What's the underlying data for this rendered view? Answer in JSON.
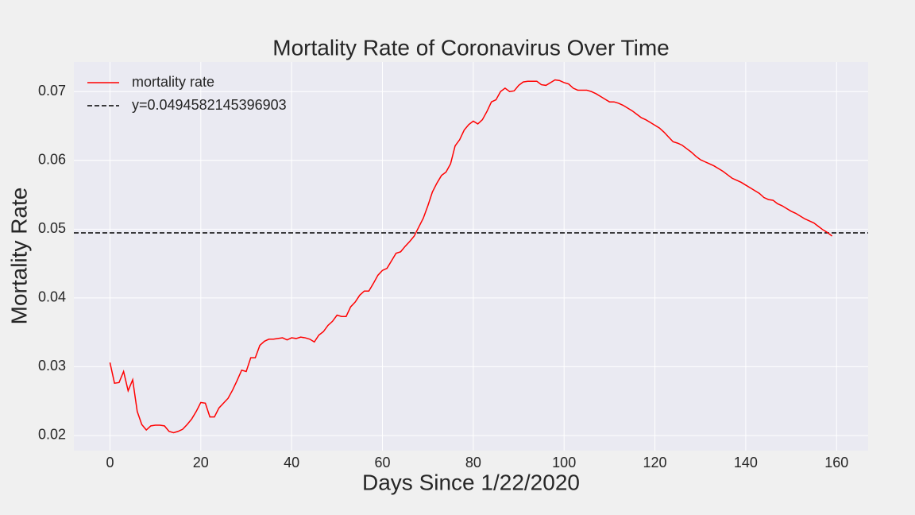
{
  "chart_data": {
    "type": "line",
    "title": "Mortality Rate of Coronavirus Over Time",
    "xlabel": "Days Since 1/22/2020",
    "ylabel": "Mortality Rate",
    "x": [
      0,
      1,
      2,
      3,
      4,
      5,
      6,
      7,
      8,
      9,
      10,
      11,
      12,
      13,
      14,
      15,
      16,
      17,
      18,
      19,
      20,
      21,
      22,
      23,
      24,
      25,
      26,
      27,
      28,
      29,
      30,
      31,
      32,
      33,
      34,
      35,
      36,
      37,
      38,
      39,
      40,
      41,
      42,
      43,
      44,
      45,
      46,
      47,
      48,
      49,
      50,
      51,
      52,
      53,
      54,
      55,
      56,
      57,
      58,
      59,
      60,
      61,
      62,
      63,
      64,
      65,
      66,
      67,
      68,
      69,
      70,
      71,
      72,
      73,
      74,
      75,
      76,
      77,
      78,
      79,
      80,
      81,
      82,
      83,
      84,
      85,
      86,
      87,
      88,
      89,
      90,
      91,
      92,
      93,
      94,
      95,
      96,
      97,
      98,
      99,
      100,
      101,
      102,
      103,
      104,
      105,
      106,
      107,
      108,
      109,
      110,
      111,
      112,
      113,
      114,
      115,
      116,
      117,
      118,
      119,
      120,
      121,
      122,
      123,
      124,
      125,
      126,
      127,
      128,
      129,
      130,
      131,
      132,
      133,
      134,
      135,
      136,
      137,
      138,
      139,
      140,
      141,
      142,
      143,
      144,
      145,
      146,
      147,
      148,
      149,
      150,
      151,
      152,
      153,
      154,
      155,
      156,
      157,
      158,
      159
    ],
    "series": [
      {
        "name": "mortality rate",
        "color": "#ff0000",
        "values": [
          0.0306,
          0.0276,
          0.0277,
          0.0293,
          0.0265,
          0.0281,
          0.0235,
          0.0216,
          0.0208,
          0.0214,
          0.0215,
          0.0215,
          0.0214,
          0.0206,
          0.0204,
          0.0206,
          0.0209,
          0.0216,
          0.0224,
          0.0235,
          0.0248,
          0.0247,
          0.0227,
          0.0227,
          0.024,
          0.0247,
          0.0254,
          0.0266,
          0.028,
          0.0295,
          0.0293,
          0.0313,
          0.0313,
          0.0331,
          0.0337,
          0.034,
          0.034,
          0.0341,
          0.0342,
          0.0339,
          0.0342,
          0.0341,
          0.0343,
          0.0342,
          0.034,
          0.0336,
          0.0346,
          0.0351,
          0.036,
          0.0366,
          0.0375,
          0.0373,
          0.0373,
          0.0387,
          0.0394,
          0.0404,
          0.041,
          0.041,
          0.0421,
          0.0433,
          0.044,
          0.0443,
          0.0454,
          0.0465,
          0.0467,
          0.0475,
          0.0482,
          0.049,
          0.0503,
          0.0516,
          0.0534,
          0.0554,
          0.0567,
          0.0578,
          0.0583,
          0.0595,
          0.0621,
          0.063,
          0.0644,
          0.0652,
          0.0657,
          0.0653,
          0.0659,
          0.0671,
          0.0685,
          0.0688,
          0.07,
          0.0705,
          0.07,
          0.0701,
          0.0709,
          0.0714,
          0.0715,
          0.0715,
          0.0715,
          0.071,
          0.0709,
          0.0713,
          0.0717,
          0.0716,
          0.0713,
          0.0711,
          0.0705,
          0.0702,
          0.0702,
          0.0702,
          0.07,
          0.0697,
          0.0693,
          0.0689,
          0.0685,
          0.0685,
          0.0683,
          0.068,
          0.0676,
          0.0672,
          0.0667,
          0.0662,
          0.0659,
          0.0655,
          0.0651,
          0.0647,
          0.0641,
          0.0634,
          0.0627,
          0.0625,
          0.0622,
          0.0617,
          0.0612,
          0.0606,
          0.0601,
          0.0598,
          0.0595,
          0.0592,
          0.0588,
          0.0584,
          0.0579,
          0.0574,
          0.0571,
          0.0568,
          0.0564,
          0.056,
          0.0556,
          0.0552,
          0.0546,
          0.0543,
          0.0542,
          0.0537,
          0.0534,
          0.053,
          0.0526,
          0.0523,
          0.0519,
          0.0515,
          0.0512,
          0.0509,
          0.0504,
          0.0499,
          0.0495,
          0.049
        ]
      }
    ],
    "hline": {
      "name": "y=0.0494582145396903",
      "value": 0.0494582145396903,
      "color": "#000000",
      "style": "dashed"
    },
    "xlim": [
      -7.95,
      166.95
    ],
    "xticks": [
      0,
      20,
      40,
      60,
      80,
      100,
      120,
      140,
      160
    ],
    "ylim": [
      0.0178,
      0.0743
    ],
    "yticks": [
      0.02,
      0.03,
      0.04,
      0.05,
      0.06,
      0.07
    ],
    "grid": true,
    "legend": "upper left"
  }
}
